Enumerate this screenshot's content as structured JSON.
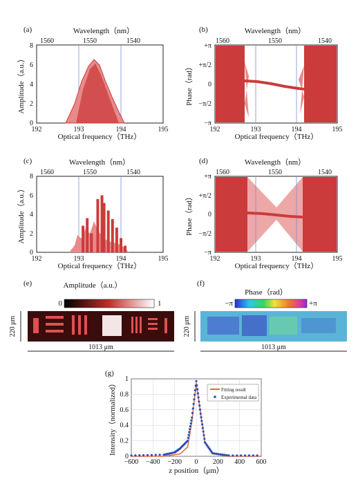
{
  "colors": {
    "signal": "#cc3b3b",
    "signal_light": "#e88a8a",
    "gridline": "#7a8fd6",
    "fit_line": "#e06a3a",
    "experimental": "#2f4fb8"
  },
  "panels": [
    {
      "label": "(a)",
      "top_axis_label": "Wavelength（nm）",
      "top_ticks": [
        "1560",
        "1550",
        "1540"
      ],
      "xlabel": "Optical frequency（THz）",
      "ylabel": "Amplitude（a.u.）",
      "xticks": [
        "192",
        "193",
        "194",
        "195"
      ],
      "yticks": [
        "0",
        "2",
        "4",
        "6",
        "8"
      ]
    },
    {
      "label": "(b)",
      "top_axis_label": "Wavelength（nm）",
      "top_ticks": [
        "1560",
        "1550",
        "1540"
      ],
      "xlabel": "Optical frequency（THz）",
      "ylabel": "Phase（rad）",
      "xticks": [
        "192",
        "193",
        "194",
        "195"
      ],
      "yticks": [
        "−π",
        "−π/2",
        "0",
        "+π/2",
        "+π"
      ]
    },
    {
      "label": "(c)",
      "top_axis_label": "Wavelength（nm）",
      "top_ticks": [
        "1560",
        "1550",
        "1540"
      ],
      "xlabel": "Optical frequency（THz）",
      "ylabel": "Amplitude（a.u.）",
      "xticks": [
        "192",
        "193",
        "194",
        "195"
      ],
      "yticks": [
        "0",
        "2",
        "4",
        "6",
        "8"
      ]
    },
    {
      "label": "(d)",
      "top_axis_label": "Wavelength（nm）",
      "top_ticks": [
        "1560",
        "1550",
        "1540"
      ],
      "xlabel": "Optical frequency（THz）",
      "ylabel": "Phase（rad）",
      "xticks": [
        "192",
        "193",
        "194",
        "195"
      ],
      "yticks": [
        "−π",
        "−π/2",
        "0",
        "+π/2",
        "+π"
      ]
    }
  ],
  "images": {
    "e": {
      "label": "(e)",
      "title": "Amplitude（a.u.）",
      "cbar_min": "0",
      "cbar_max": "1",
      "height_label": "220 μm",
      "width_label": "1013 μm"
    },
    "f": {
      "label": "(f)",
      "title": "Phase（rad）",
      "cbar_min": "−π",
      "cbar_max": "+π",
      "height_label": "220 μm",
      "width_label": "1013 μm"
    }
  },
  "plot_g": {
    "label": "(g)",
    "xlabel": "z position（μm）",
    "ylabel": "Intensity（normalized）",
    "xticks": [
      "−600",
      "−400",
      "−200",
      "0",
      "200",
      "400",
      "600"
    ],
    "yticks": [
      "0",
      "0.2",
      "0.4",
      "0.6",
      "0.8",
      "1"
    ],
    "legend": [
      "Fitting result",
      "Experimental data"
    ]
  },
  "chart_data": [
    {
      "type": "area",
      "panel": "a",
      "x": [
        192,
        192.8,
        193.0,
        193.2,
        193.4,
        193.6,
        193.8,
        194.0,
        194.2,
        195
      ],
      "y": [
        0,
        0.1,
        2.5,
        4.8,
        6.3,
        5.6,
        3.8,
        1.8,
        0.2,
        0
      ],
      "xlim": [
        192,
        195
      ],
      "ylim": [
        0,
        8
      ]
    },
    {
      "type": "line",
      "panel": "b",
      "x": [
        192.7,
        193.0,
        193.5,
        194.0,
        194.2
      ],
      "y": [
        0.1,
        0.05,
        -0.1,
        -0.25,
        -0.3
      ],
      "note_noise_region_thz": [
        [
          192,
          192.7
        ],
        [
          194.2,
          195
        ]
      ],
      "xlim": [
        192,
        195
      ],
      "ylim_pi": [
        -1,
        1
      ]
    },
    {
      "type": "bar",
      "panel": "c",
      "x": [
        193.1,
        193.2,
        193.3,
        193.45,
        193.55,
        193.6,
        193.7,
        193.8,
        193.9,
        194.0,
        194.1
      ],
      "y": [
        2.8,
        3.6,
        2.0,
        5.6,
        6.0,
        5.2,
        4.4,
        3.5,
        2.6,
        1.5,
        0.7
      ],
      "xlim": [
        192,
        195
      ],
      "ylim": [
        0,
        8
      ]
    },
    {
      "type": "line",
      "panel": "d",
      "x": [
        193.0,
        193.5,
        194.0
      ],
      "y": [
        0.0,
        -0.05,
        -0.1
      ],
      "note_noise_region_thz": [
        [
          192,
          192.8
        ],
        [
          194.2,
          195
        ]
      ],
      "xlim": [
        192,
        195
      ],
      "ylim_pi": [
        -1,
        1
      ]
    },
    {
      "type": "line",
      "panel": "g",
      "series": [
        {
          "name": "Fitting result",
          "x": [
            -600,
            -300,
            -150,
            -80,
            -40,
            0,
            40,
            80,
            150,
            300,
            600
          ],
          "y": [
            0,
            0,
            0.03,
            0.12,
            0.45,
            0.95,
            0.55,
            0.18,
            0.03,
            0,
            0
          ]
        },
        {
          "name": "Experimental data",
          "x": [
            -600,
            -300,
            -200,
            -150,
            -80,
            -40,
            0,
            40,
            80,
            150,
            300,
            600
          ],
          "y": [
            0.01,
            0.02,
            0.05,
            0.1,
            0.2,
            0.5,
            0.97,
            0.55,
            0.18,
            0.04,
            0.01,
            0.01
          ]
        }
      ],
      "xlim": [
        -600,
        600
      ],
      "ylim": [
        0,
        1
      ]
    }
  ]
}
